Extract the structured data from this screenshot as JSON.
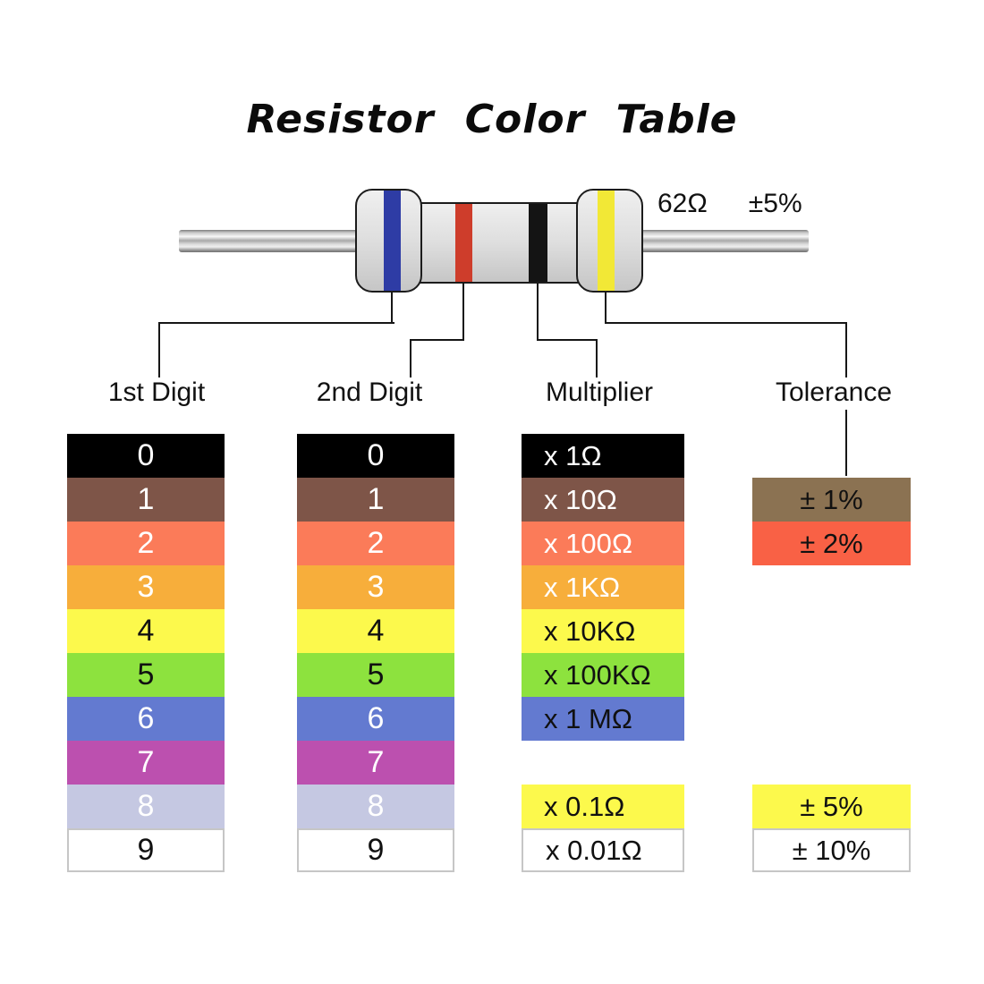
{
  "title": "Resistor Color Table",
  "resistor": {
    "value": "62Ω",
    "tolerance": "±5%",
    "bands": [
      {
        "name": "first-digit-band",
        "color": "#2E3CA5"
      },
      {
        "name": "second-digit-band",
        "color": "#CE3D2B"
      },
      {
        "name": "multiplier-band",
        "color": "#141414"
      },
      {
        "name": "tolerance-band",
        "color": "#F2E836"
      }
    ]
  },
  "columns": [
    {
      "id": "first-digit",
      "header": "1st Digit",
      "rows": [
        {
          "slot": 0,
          "label": "0",
          "bg": "#000000",
          "fg": "#ffffff"
        },
        {
          "slot": 1,
          "label": "1",
          "bg": "#7E5548",
          "fg": "#ffffff"
        },
        {
          "slot": 2,
          "label": "2",
          "bg": "#FB7B59",
          "fg": "#ffffff"
        },
        {
          "slot": 3,
          "label": "3",
          "bg": "#F7AE3B",
          "fg": "#ffffff"
        },
        {
          "slot": 4,
          "label": "4",
          "bg": "#FCF94C",
          "fg": "#111111"
        },
        {
          "slot": 5,
          "label": "5",
          "bg": "#8DE23E",
          "fg": "#111111"
        },
        {
          "slot": 6,
          "label": "6",
          "bg": "#637AD0",
          "fg": "#ffffff"
        },
        {
          "slot": 7,
          "label": "7",
          "bg": "#BC50AF",
          "fg": "#ffffff"
        },
        {
          "slot": 8,
          "label": "8",
          "bg": "#C5C8E2",
          "fg": "#ffffff"
        },
        {
          "slot": 9,
          "label": "9",
          "bg": "#ffffff",
          "fg": "#111111",
          "bordered": true
        }
      ]
    },
    {
      "id": "second-digit",
      "header": "2nd Digit",
      "rows": [
        {
          "slot": 0,
          "label": "0",
          "bg": "#000000",
          "fg": "#ffffff"
        },
        {
          "slot": 1,
          "label": "1",
          "bg": "#7E5548",
          "fg": "#ffffff"
        },
        {
          "slot": 2,
          "label": "2",
          "bg": "#FB7B59",
          "fg": "#ffffff"
        },
        {
          "slot": 3,
          "label": "3",
          "bg": "#F7AE3B",
          "fg": "#ffffff"
        },
        {
          "slot": 4,
          "label": "4",
          "bg": "#FCF94C",
          "fg": "#111111"
        },
        {
          "slot": 5,
          "label": "5",
          "bg": "#8DE23E",
          "fg": "#111111"
        },
        {
          "slot": 6,
          "label": "6",
          "bg": "#637AD0",
          "fg": "#ffffff"
        },
        {
          "slot": 7,
          "label": "7",
          "bg": "#BC50AF",
          "fg": "#ffffff"
        },
        {
          "slot": 8,
          "label": "8",
          "bg": "#C5C8E2",
          "fg": "#ffffff"
        },
        {
          "slot": 9,
          "label": "9",
          "bg": "#ffffff",
          "fg": "#111111",
          "bordered": true
        }
      ]
    },
    {
      "id": "multiplier",
      "header": "Multiplier",
      "rows": [
        {
          "slot": 0,
          "label": "x 1Ω",
          "bg": "#000000",
          "fg": "#ffffff"
        },
        {
          "slot": 1,
          "label": "x 10Ω",
          "bg": "#7E5548",
          "fg": "#ffffff"
        },
        {
          "slot": 2,
          "label": "x 100Ω",
          "bg": "#FB7B59",
          "fg": "#ffffff"
        },
        {
          "slot": 3,
          "label": "x 1KΩ",
          "bg": "#F7AE3B",
          "fg": "#ffffff"
        },
        {
          "slot": 4,
          "label": "x 10KΩ",
          "bg": "#FCF94C",
          "fg": "#111111"
        },
        {
          "slot": 5,
          "label": "x 100KΩ",
          "bg": "#8DE23E",
          "fg": "#111111"
        },
        {
          "slot": 6,
          "label": "x 1 MΩ",
          "bg": "#637AD0",
          "fg": "#111111"
        },
        {
          "slot": 8,
          "label": "x 0.1Ω",
          "bg": "#FCF94C",
          "fg": "#111111"
        },
        {
          "slot": 9,
          "label": "x 0.01Ω",
          "bg": "#ffffff",
          "fg": "#111111",
          "bordered": true
        }
      ]
    },
    {
      "id": "tolerance",
      "header": "Tolerance",
      "rows": [
        {
          "slot": 1,
          "label": "± 1%",
          "bg": "#8B7252",
          "fg": "#111111"
        },
        {
          "slot": 2,
          "label": "± 2%",
          "bg": "#F96145",
          "fg": "#111111"
        },
        {
          "slot": 8,
          "label": "± 5%",
          "bg": "#FCF94C",
          "fg": "#111111"
        },
        {
          "slot": 9,
          "label": "± 10%",
          "bg": "#ffffff",
          "fg": "#111111",
          "bordered": true
        }
      ]
    }
  ]
}
